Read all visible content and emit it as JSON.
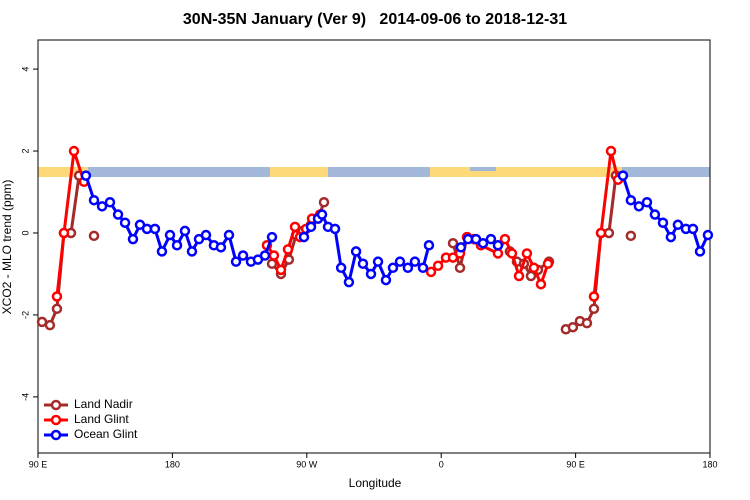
{
  "chart_data": {
    "type": "line",
    "title": "30N-35N January (Ver 9)   2014-09-06 to 2018-12-31",
    "x_label": "Longitude",
    "y_label": "XCO2 - MLO trend (ppm)",
    "xlim": [
      90,
      540
    ],
    "ylim": [
      -5.37,
      4.71
    ],
    "xticks": [
      {
        "value": 90,
        "label": "90 E"
      },
      180,
      {
        "value": 270,
        "label": "90 W"
      },
      {
        "value": 360,
        "label": "0"
      },
      {
        "value": 450,
        "label": "90 E"
      },
      {
        "value": 540,
        "label": "180"
      }
    ],
    "yticks": [
      -4,
      -2,
      0,
      2,
      4
    ],
    "legend": "bottomleft",
    "series": [
      {
        "name": "Land Nadir",
        "color": "#a52a2a",
        "x": [
          92.7,
          98,
          102.7,
          107.4,
          112.1,
          117.5,
          null,
          127.5,
          null,
          246.7,
          252.7,
          258,
          262.8,
          267.4,
          272.8,
          277.5,
          281.5,
          null,
          367.9,
          372.6,
          377.3,
          382,
          null,
          406,
          410.7,
          415.4,
          420.1,
          424.8,
          432.2,
          null,
          443.5,
          448.2,
          452.9,
          457.6,
          462.3,
          467,
          472.3,
          477,
          null,
          487
        ],
        "values": [
          -2.17,
          -2.25,
          -1.85,
          0,
          0,
          1.4,
          null,
          -0.07,
          null,
          -0.75,
          -1.0,
          -0.65,
          -0.05,
          0.05,
          0.2,
          0.35,
          0.75,
          null,
          -0.25,
          -0.85,
          -0.1,
          -0.15,
          null,
          -0.45,
          -0.7,
          -0.75,
          -1.05,
          -0.9,
          -0.7,
          null,
          -2.35,
          -2.3,
          -2.15,
          -2.2,
          -1.85,
          0,
          0,
          1.4,
          null,
          -0.07
        ]
      },
      {
        "name": "Land Glint",
        "color": "#ff0000",
        "x": [
          102.7,
          107.4,
          114.1,
          120.8,
          null,
          243.3,
          248,
          252.7,
          257.4,
          262.1,
          265.4,
          269.5,
          273.5,
          278.8,
          null,
          353.2,
          357.9,
          363.2,
          367.9,
          372.6,
          377.3,
          382,
          386.6,
          398,
          402.7,
          407.4,
          412.1,
          417.4,
          422.1,
          426.8,
          431.5,
          null,
          462.3,
          467,
          473.7,
          478.4
        ],
        "values": [
          -1.55,
          0,
          2.0,
          1.25,
          null,
          -0.3,
          -0.55,
          -0.9,
          -0.4,
          0.15,
          -0.1,
          0.1,
          0.35,
          0.45,
          null,
          -0.95,
          -0.8,
          -0.6,
          -0.6,
          -0.5,
          -0.1,
          -0.15,
          -0.3,
          -0.5,
          -0.15,
          -0.5,
          -1.05,
          -0.5,
          -0.85,
          -1.25,
          -0.75,
          null,
          -1.55,
          0,
          2.0,
          1.3
        ]
      },
      {
        "name": "Ocean Glint",
        "color": "#0000ff",
        "x": [
          122.1,
          127.5,
          132.9,
          138.2,
          143.6,
          148.3,
          153.6,
          158.3,
          163,
          168.3,
          173,
          178.4,
          183.1,
          188.4,
          193.1,
          197.8,
          202.5,
          207.8,
          212.5,
          217.9,
          222.6,
          227.3,
          232.6,
          237.3,
          242,
          246.7,
          null,
          268.1,
          272.8,
          277.5,
          280.2,
          284.2,
          288.9,
          293,
          298.2,
          303,
          307.6,
          313,
          317.7,
          323,
          327.7,
          332.4,
          337.7,
          342.4,
          347.8,
          351.8,
          null,
          373.2,
          378,
          383.3,
          388,
          393.3,
          398,
          null,
          481.7,
          487,
          492.4,
          497.8,
          503.1,
          508.5,
          513.8,
          518.5,
          523.9,
          528.6,
          533.3,
          538.6
        ],
        "values": [
          1.4,
          0.8,
          0.65,
          0.75,
          0.45,
          0.25,
          -0.15,
          0.2,
          0.1,
          0.1,
          -0.45,
          -0.05,
          -0.3,
          0.05,
          -0.45,
          -0.15,
          -0.05,
          -0.3,
          -0.35,
          -0.05,
          -0.7,
          -0.55,
          -0.7,
          -0.65,
          -0.55,
          -0.1,
          null,
          -0.1,
          0.15,
          0.35,
          0.45,
          0.15,
          0.1,
          -0.85,
          -1.2,
          -0.45,
          -0.75,
          -1.0,
          -0.7,
          -1.15,
          -0.85,
          -0.7,
          -0.85,
          -0.7,
          -0.85,
          -0.3,
          null,
          -0.35,
          -0.15,
          -0.15,
          -0.25,
          -0.15,
          -0.3,
          null,
          1.4,
          0.8,
          0.65,
          0.75,
          0.45,
          0.25,
          -0.1,
          0.2,
          0.1,
          0.1,
          -0.45,
          -0.05
        ]
      }
    ]
  }
}
